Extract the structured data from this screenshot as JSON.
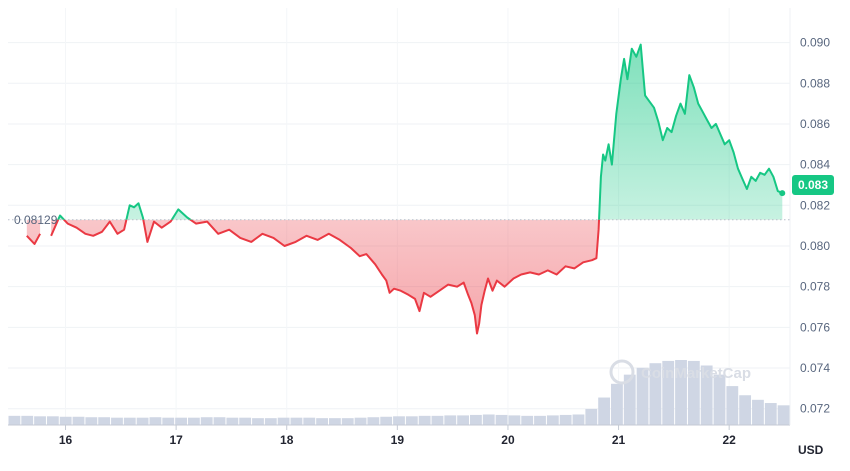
{
  "chart_data": {
    "type": "area",
    "x_ticks": [
      "16",
      "17",
      "18",
      "19",
      "20",
      "21",
      "22"
    ],
    "y_ticks": [
      "0.072",
      "0.074",
      "0.076",
      "0.078",
      "0.080",
      "0.082",
      "0.084",
      "0.086",
      "0.088",
      "0.090"
    ],
    "ylim": [
      0.0712,
      0.0917
    ],
    "xlim": [
      15.48,
      22.55
    ],
    "unit_label": "USD",
    "reference_value": 0.08129,
    "reference_label": "0.08129",
    "current_value": 0.083,
    "current_label": "0.083",
    "grid": true,
    "watermark": "CoinMarketCap",
    "colors": {
      "up": "#16c784",
      "down": "#ea3943",
      "badge": "#16c784",
      "volume": "#cfd6e4"
    },
    "price_series": {
      "x": [
        15.65,
        15.72,
        15.77,
        15.82,
        15.87,
        15.95,
        16.02,
        16.1,
        16.18,
        16.25,
        16.33,
        16.4,
        16.47,
        16.53,
        16.58,
        16.62,
        16.66,
        16.7,
        16.74,
        16.8,
        16.87,
        16.95,
        17.02,
        17.1,
        17.18,
        17.28,
        17.38,
        17.48,
        17.58,
        17.68,
        17.78,
        17.88,
        17.98,
        18.08,
        18.18,
        18.28,
        18.38,
        18.48,
        18.58,
        18.66,
        18.72,
        18.8,
        18.86,
        18.9,
        18.93,
        18.97,
        19.03,
        19.1,
        19.16,
        19.2,
        19.24,
        19.3,
        19.38,
        19.46,
        19.54,
        19.6,
        19.64,
        19.67,
        19.7,
        19.72,
        19.74,
        19.76,
        19.79,
        19.82,
        19.86,
        19.9,
        19.97,
        20.05,
        20.12,
        20.2,
        20.28,
        20.36,
        20.44,
        20.52,
        20.6,
        20.68,
        20.76,
        20.8,
        20.82,
        20.84,
        20.86,
        20.88,
        20.91,
        20.94,
        20.98,
        21.02,
        21.05,
        21.08,
        21.12,
        21.16,
        21.2,
        21.24,
        21.28,
        21.32,
        21.36,
        21.4,
        21.44,
        21.48,
        21.52,
        21.56,
        21.6,
        21.64,
        21.68,
        21.72,
        21.76,
        21.8,
        21.84,
        21.88,
        21.92,
        21.96,
        22.0,
        22.04,
        22.08,
        22.12,
        22.16,
        22.2,
        22.24,
        22.28,
        22.32,
        22.36,
        22.4,
        22.44,
        22.48
      ],
      "y": [
        0.0805,
        0.0801,
        0.0806,
        null,
        0.0805,
        0.0815,
        0.0811,
        0.0809,
        0.0806,
        0.0805,
        0.0807,
        0.0812,
        0.0806,
        0.0808,
        0.082,
        0.0819,
        0.0821,
        0.0814,
        0.0802,
        0.0812,
        0.0809,
        0.0812,
        0.0818,
        0.0814,
        0.0811,
        0.0812,
        0.0806,
        0.0808,
        0.0804,
        0.0802,
        0.0806,
        0.0804,
        0.08,
        0.0802,
        0.0805,
        0.0803,
        0.0806,
        0.0803,
        0.0799,
        0.0795,
        0.0796,
        0.0791,
        0.0786,
        0.0783,
        0.0777,
        0.0779,
        0.0778,
        0.0776,
        0.0774,
        0.0768,
        0.0777,
        0.0775,
        0.0778,
        0.0781,
        0.078,
        0.0782,
        0.0776,
        0.0772,
        0.0766,
        0.0757,
        0.0762,
        0.0771,
        0.0778,
        0.0784,
        0.0778,
        0.0783,
        0.078,
        0.0784,
        0.0786,
        0.0787,
        0.0786,
        0.0788,
        0.0786,
        0.079,
        0.0789,
        0.0792,
        0.0793,
        0.0794,
        0.0808,
        0.0834,
        0.0845,
        0.0842,
        0.085,
        0.084,
        0.0865,
        0.0882,
        0.0892,
        0.0882,
        0.0897,
        0.0893,
        0.0899,
        0.0874,
        0.0871,
        0.0868,
        0.0861,
        0.0852,
        0.0858,
        0.0856,
        0.0864,
        0.087,
        0.0865,
        0.0884,
        0.0878,
        0.087,
        0.0866,
        0.0862,
        0.0858,
        0.086,
        0.0855,
        0.085,
        0.0852,
        0.0846,
        0.0838,
        0.0833,
        0.0828,
        0.0834,
        0.0832,
        0.0836,
        0.0835,
        0.0838,
        0.0834,
        0.0827,
        0.0826
      ]
    },
    "volume_series": [
      2,
      2,
      1.9,
      1.9,
      1.8,
      1.8,
      1.7,
      1.7,
      1.6,
      1.6,
      1.6,
      1.7,
      1.6,
      1.6,
      1.6,
      1.7,
      1.7,
      1.6,
      1.6,
      1.5,
      1.5,
      1.6,
      1.6,
      1.6,
      1.5,
      1.5,
      1.5,
      1.6,
      1.7,
      1.8,
      1.9,
      1.9,
      2,
      2,
      2.1,
      2.1,
      2.2,
      2.3,
      2.2,
      2.1,
      2,
      2,
      2.1,
      2.2,
      2.3,
      3.5,
      6,
      9,
      11,
      12.5,
      13.5,
      14,
      14.2,
      14,
      13,
      11,
      8.5,
      6.5,
      5.5,
      4.8,
      4.3
    ]
  }
}
